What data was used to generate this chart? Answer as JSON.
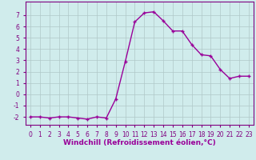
{
  "x": [
    0,
    1,
    2,
    3,
    4,
    5,
    6,
    7,
    8,
    9,
    10,
    11,
    12,
    13,
    14,
    15,
    16,
    17,
    18,
    19,
    20,
    21,
    22,
    23
  ],
  "y": [
    -2,
    -2,
    -2.1,
    -2,
    -2,
    -2.1,
    -2.2,
    -2,
    -2.1,
    -0.4,
    2.9,
    6.4,
    7.2,
    7.3,
    6.5,
    5.6,
    5.6,
    4.4,
    3.5,
    3.4,
    2.2,
    1.4,
    1.6,
    1.6
  ],
  "line_color": "#990099",
  "marker": "+",
  "marker_size": 3,
  "background_color": "#d0ecec",
  "grid_color": "#b0c8c8",
  "xlabel": "Windchill (Refroidissement éolien,°C)",
  "xlabel_fontsize": 6.5,
  "ylabel_ticks": [
    -2,
    -1,
    0,
    1,
    2,
    3,
    4,
    5,
    6,
    7
  ],
  "xlim": [
    -0.5,
    23.5
  ],
  "ylim": [
    -2.7,
    8.2
  ],
  "xtick_labels": [
    "0",
    "1",
    "2",
    "3",
    "4",
    "5",
    "6",
    "7",
    "8",
    "9",
    "10",
    "11",
    "12",
    "13",
    "14",
    "15",
    "16",
    "17",
    "18",
    "19",
    "20",
    "21",
    "22",
    "23"
  ],
  "tick_fontsize": 5.5,
  "line_width": 1.0,
  "spine_color": "#800080",
  "tick_color": "#800080"
}
